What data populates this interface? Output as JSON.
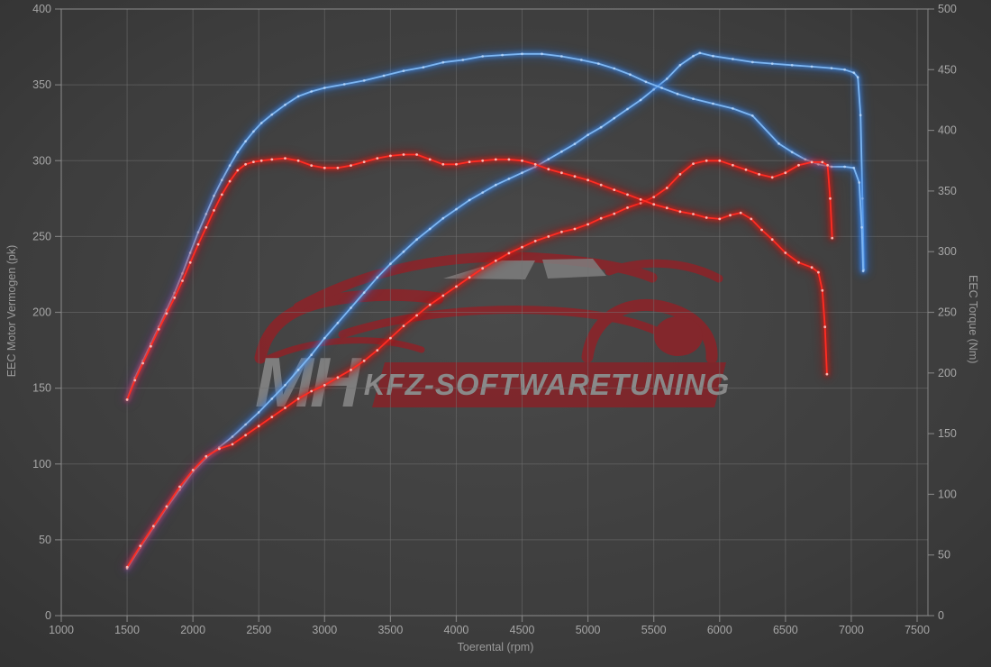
{
  "watermark": {
    "mh": "MH",
    "banner": "KFZ-SOFTWARETUNING"
  },
  "colors": {
    "blue": {
      "core": "#7db6f2",
      "mid": "#3f8ced",
      "glow": "#1d62c4",
      "dot": "#d8eaff"
    },
    "red": {
      "core": "#ff2d22",
      "mid": "#e21510",
      "glow": "#a90c08",
      "dot": "#ffccc6"
    },
    "grid": "#747474",
    "axis": "#8f8f8f",
    "tick_text": "#a6a6a6",
    "watermark_red": "#9c1c23",
    "watermark_gray": "#8c8c8c"
  },
  "chart_data": {
    "type": "line",
    "xlabel": "Toerental (rpm)",
    "ylabel_left": "EEC Motor Vermogen (pk)",
    "ylabel_right": "EEC Torque (Nm)",
    "xlim": [
      1000,
      7500
    ],
    "ylim_left": [
      0,
      400
    ],
    "ylim_right": [
      0,
      500
    ],
    "x_ticks": [
      1000,
      1500,
      2000,
      2500,
      3000,
      3500,
      4000,
      4500,
      5000,
      5500,
      6000,
      6500,
      7000,
      7500
    ],
    "y_left_ticks": [
      0,
      50,
      100,
      150,
      200,
      250,
      300,
      350,
      400
    ],
    "y_right_ticks": [
      0,
      50,
      100,
      150,
      200,
      250,
      300,
      350,
      400,
      450,
      500
    ],
    "grid": true,
    "legend": false,
    "series": [
      {
        "name": "vermogen-blue",
        "color": "blue",
        "axis": "left",
        "points": [
          [
            1500,
            31
          ],
          [
            1600,
            45
          ],
          [
            1700,
            58
          ],
          [
            1800,
            71
          ],
          [
            1900,
            83
          ],
          [
            2000,
            95
          ],
          [
            2100,
            104
          ],
          [
            2200,
            111
          ],
          [
            2300,
            118
          ],
          [
            2400,
            126
          ],
          [
            2500,
            134
          ],
          [
            2600,
            143
          ],
          [
            2700,
            152
          ],
          [
            2800,
            162
          ],
          [
            2900,
            172
          ],
          [
            3000,
            183
          ],
          [
            3100,
            193
          ],
          [
            3200,
            203
          ],
          [
            3300,
            213
          ],
          [
            3400,
            223
          ],
          [
            3500,
            232
          ],
          [
            3600,
            240
          ],
          [
            3700,
            248
          ],
          [
            3800,
            255
          ],
          [
            3900,
            262
          ],
          [
            4000,
            268
          ],
          [
            4100,
            274
          ],
          [
            4200,
            279
          ],
          [
            4300,
            284
          ],
          [
            4400,
            288
          ],
          [
            4500,
            292
          ],
          [
            4600,
            296
          ],
          [
            4700,
            301
          ],
          [
            4800,
            306
          ],
          [
            4900,
            311
          ],
          [
            5000,
            317
          ],
          [
            5100,
            322
          ],
          [
            5200,
            328
          ],
          [
            5300,
            334
          ],
          [
            5400,
            340
          ],
          [
            5500,
            347
          ],
          [
            5600,
            354
          ],
          [
            5700,
            363
          ],
          [
            5800,
            369
          ],
          [
            5850,
            371
          ],
          [
            5950,
            369
          ],
          [
            6100,
            367
          ],
          [
            6250,
            365
          ],
          [
            6400,
            364
          ],
          [
            6550,
            363
          ],
          [
            6700,
            362
          ],
          [
            6850,
            361
          ],
          [
            6950,
            360
          ],
          [
            7020,
            358
          ],
          [
            7050,
            355
          ],
          [
            7070,
            330
          ],
          [
            7085,
            275
          ],
          [
            7095,
            228
          ]
        ]
      },
      {
        "name": "torque-blue",
        "color": "blue",
        "axis": "right",
        "points": [
          [
            1500,
            178
          ],
          [
            1560,
            196
          ],
          [
            1620,
            210
          ],
          [
            1680,
            224
          ],
          [
            1740,
            238
          ],
          [
            1800,
            252
          ],
          [
            1860,
            266
          ],
          [
            1920,
            282
          ],
          [
            1980,
            299
          ],
          [
            2040,
            316
          ],
          [
            2100,
            331
          ],
          [
            2160,
            346
          ],
          [
            2220,
            359
          ],
          [
            2280,
            371
          ],
          [
            2340,
            382
          ],
          [
            2400,
            391
          ],
          [
            2460,
            399
          ],
          [
            2520,
            406
          ],
          [
            2600,
            413
          ],
          [
            2700,
            421
          ],
          [
            2800,
            428
          ],
          [
            2900,
            432
          ],
          [
            3000,
            435
          ],
          [
            3150,
            438
          ],
          [
            3300,
            441
          ],
          [
            3450,
            445
          ],
          [
            3600,
            449
          ],
          [
            3750,
            452
          ],
          [
            3900,
            456
          ],
          [
            4050,
            458
          ],
          [
            4200,
            461
          ],
          [
            4350,
            462
          ],
          [
            4500,
            463
          ],
          [
            4650,
            463
          ],
          [
            4800,
            461
          ],
          [
            4950,
            458
          ],
          [
            5080,
            455
          ],
          [
            5200,
            451
          ],
          [
            5320,
            446
          ],
          [
            5440,
            440
          ],
          [
            5560,
            435
          ],
          [
            5680,
            430
          ],
          [
            5800,
            426
          ],
          [
            5950,
            422
          ],
          [
            6100,
            418
          ],
          [
            6250,
            412
          ],
          [
            6450,
            389
          ],
          [
            6550,
            382
          ],
          [
            6650,
            376
          ],
          [
            6750,
            372
          ],
          [
            6850,
            370
          ],
          [
            6950,
            370
          ],
          [
            7020,
            369
          ],
          [
            7060,
            357
          ],
          [
            7080,
            320
          ],
          [
            7090,
            284
          ]
        ]
      },
      {
        "name": "vermogen-red",
        "color": "red",
        "axis": "left",
        "points": [
          [
            1500,
            32
          ],
          [
            1600,
            46
          ],
          [
            1700,
            59
          ],
          [
            1800,
            72
          ],
          [
            1900,
            85
          ],
          [
            2000,
            96
          ],
          [
            2100,
            105
          ],
          [
            2200,
            110
          ],
          [
            2300,
            113
          ],
          [
            2400,
            119
          ],
          [
            2500,
            125
          ],
          [
            2600,
            131
          ],
          [
            2700,
            137
          ],
          [
            2800,
            143
          ],
          [
            2900,
            148
          ],
          [
            3000,
            152
          ],
          [
            3100,
            157
          ],
          [
            3200,
            162
          ],
          [
            3300,
            168
          ],
          [
            3400,
            175
          ],
          [
            3500,
            183
          ],
          [
            3600,
            191
          ],
          [
            3700,
            198
          ],
          [
            3800,
            205
          ],
          [
            3900,
            211
          ],
          [
            4000,
            217
          ],
          [
            4100,
            223
          ],
          [
            4200,
            229
          ],
          [
            4300,
            234
          ],
          [
            4400,
            239
          ],
          [
            4500,
            243
          ],
          [
            4600,
            247
          ],
          [
            4700,
            250
          ],
          [
            4800,
            253
          ],
          [
            4900,
            255
          ],
          [
            5000,
            258
          ],
          [
            5100,
            262
          ],
          [
            5200,
            265
          ],
          [
            5300,
            269
          ],
          [
            5400,
            272
          ],
          [
            5500,
            276
          ],
          [
            5600,
            282
          ],
          [
            5700,
            291
          ],
          [
            5800,
            298
          ],
          [
            5900,
            300
          ],
          [
            6000,
            300
          ],
          [
            6100,
            297
          ],
          [
            6200,
            294
          ],
          [
            6300,
            291
          ],
          [
            6400,
            289
          ],
          [
            6500,
            292
          ],
          [
            6600,
            297
          ],
          [
            6700,
            299
          ],
          [
            6780,
            299
          ],
          [
            6820,
            297
          ],
          [
            6840,
            275
          ],
          [
            6855,
            249
          ]
        ]
      },
      {
        "name": "torque-red",
        "color": "red",
        "axis": "right",
        "points": [
          [
            1500,
            178
          ],
          [
            1560,
            194
          ],
          [
            1620,
            208
          ],
          [
            1680,
            222
          ],
          [
            1740,
            236
          ],
          [
            1800,
            249
          ],
          [
            1860,
            262
          ],
          [
            1920,
            276
          ],
          [
            1980,
            291
          ],
          [
            2040,
            306
          ],
          [
            2100,
            320
          ],
          [
            2160,
            334
          ],
          [
            2220,
            347
          ],
          [
            2280,
            358
          ],
          [
            2340,
            367
          ],
          [
            2400,
            372
          ],
          [
            2460,
            374
          ],
          [
            2520,
            375
          ],
          [
            2600,
            376
          ],
          [
            2700,
            377
          ],
          [
            2800,
            375
          ],
          [
            2900,
            371
          ],
          [
            3000,
            369
          ],
          [
            3100,
            369
          ],
          [
            3200,
            371
          ],
          [
            3300,
            374
          ],
          [
            3400,
            377
          ],
          [
            3500,
            379
          ],
          [
            3600,
            380
          ],
          [
            3700,
            380
          ],
          [
            3800,
            376
          ],
          [
            3900,
            372
          ],
          [
            4000,
            372
          ],
          [
            4100,
            374
          ],
          [
            4200,
            375
          ],
          [
            4300,
            376
          ],
          [
            4400,
            376
          ],
          [
            4500,
            375
          ],
          [
            4600,
            372
          ],
          [
            4700,
            368
          ],
          [
            4800,
            365
          ],
          [
            4900,
            362
          ],
          [
            5000,
            359
          ],
          [
            5100,
            355
          ],
          [
            5200,
            351
          ],
          [
            5300,
            347
          ],
          [
            5400,
            343
          ],
          [
            5500,
            339
          ],
          [
            5600,
            336
          ],
          [
            5700,
            333
          ],
          [
            5800,
            331
          ],
          [
            5900,
            328
          ],
          [
            6000,
            327
          ],
          [
            6080,
            330
          ],
          [
            6160,
            332
          ],
          [
            6240,
            327
          ],
          [
            6320,
            318
          ],
          [
            6400,
            310
          ],
          [
            6500,
            299
          ],
          [
            6600,
            291
          ],
          [
            6700,
            287
          ],
          [
            6750,
            283
          ],
          [
            6780,
            268
          ],
          [
            6800,
            238
          ],
          [
            6815,
            199
          ]
        ]
      }
    ]
  }
}
